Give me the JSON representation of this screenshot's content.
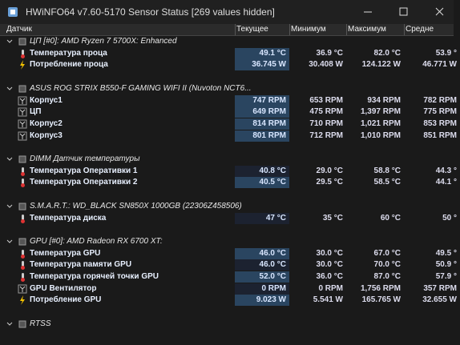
{
  "window": {
    "title": "HWiNFO64 v7.60-5170 Sensor Status [269 values hidden]"
  },
  "columns": [
    "Датчик",
    "Текущее",
    "Минимум",
    "Максимум",
    "Средне"
  ],
  "groups": [
    {
      "name": "ЦП [#0]: AMD Ryzen 7 5700X: Enhanced",
      "rows": [
        {
          "icon": "temp",
          "highlight": true,
          "cells": [
            "Температура проца",
            "49.1 °C",
            "36.9 °C",
            "82.0 °C",
            "53.9 °"
          ]
        },
        {
          "icon": "power",
          "highlight": true,
          "cells": [
            "Потребление проца",
            "36.745 W",
            "30.408 W",
            "124.122 W",
            "46.771 W"
          ]
        }
      ]
    },
    {
      "name": "ASUS ROG STRIX B550-F GAMING WIFI II (Nuvoton NCT6...",
      "rows": [
        {
          "icon": "fan",
          "highlight": true,
          "cells": [
            "Корпус1",
            "747 RPM",
            "653 RPM",
            "934 RPM",
            "782 RPM"
          ]
        },
        {
          "icon": "fan",
          "highlight": true,
          "cells": [
            "ЦП",
            "649 RPM",
            "475 RPM",
            "1,397 RPM",
            "775 RPM"
          ]
        },
        {
          "icon": "fan",
          "highlight": true,
          "cells": [
            "Корпус2",
            "814 RPM",
            "710 RPM",
            "1,021 RPM",
            "853 RPM"
          ]
        },
        {
          "icon": "fan",
          "highlight": true,
          "cells": [
            "Корпус3",
            "801 RPM",
            "712 RPM",
            "1,010 RPM",
            "851 RPM"
          ]
        }
      ]
    },
    {
      "name": "DIMM Датчик температуры",
      "rows": [
        {
          "icon": "temp",
          "highlight": false,
          "cells": [
            "Температура Оперативки 1",
            "40.8 °C",
            "29.0 °C",
            "58.8 °C",
            "44.3 °"
          ]
        },
        {
          "icon": "temp",
          "highlight": true,
          "cells": [
            "Температура Оперативки 2",
            "40.5 °C",
            "29.5 °C",
            "58.5 °C",
            "44.1 °"
          ]
        }
      ]
    },
    {
      "name": "S.M.A.R.T.: WD_BLACK SN850X 1000GB (22306Z458506)",
      "rows": [
        {
          "icon": "temp",
          "highlight": false,
          "cells": [
            "Температура диска",
            "47 °C",
            "35 °C",
            "60 °C",
            "50 °"
          ]
        }
      ]
    },
    {
      "name": "GPU [#0]: AMD Radeon RX 6700 XT:",
      "rows": [
        {
          "icon": "temp",
          "highlight": true,
          "cells": [
            "Температура GPU",
            "46.0 °C",
            "30.0 °C",
            "67.0 °C",
            "49.5 °"
          ]
        },
        {
          "icon": "temp",
          "highlight": false,
          "cells": [
            "Температура памяти GPU",
            "46.0 °C",
            "30.0 °C",
            "70.0 °C",
            "50.9 °"
          ]
        },
        {
          "icon": "temp",
          "highlight": true,
          "cells": [
            "Температура горячей точки GPU",
            "52.0 °C",
            "36.0 °C",
            "87.0 °C",
            "57.9 °"
          ]
        },
        {
          "icon": "fan",
          "highlight": false,
          "cells": [
            "GPU Вентилятор",
            "0 RPM",
            "0 RPM",
            "1,756 RPM",
            "357 RPM"
          ]
        },
        {
          "icon": "power",
          "highlight": true,
          "cells": [
            "Потребление GPU",
            "9.023 W",
            "5.541 W",
            "165.765 W",
            "32.655 W"
          ]
        }
      ]
    },
    {
      "name": "RTSS",
      "rows": []
    }
  ]
}
